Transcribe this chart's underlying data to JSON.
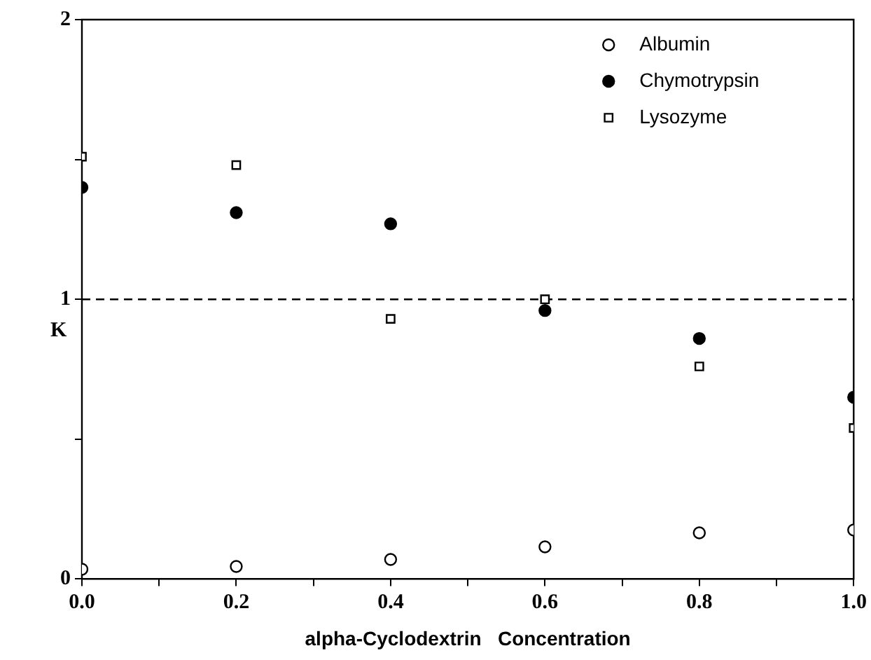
{
  "chart_data": {
    "type": "scatter",
    "xlabel": "alpha-Cyclodextrin   Concentration",
    "ylabel": "K",
    "x": [
      0,
      0.2,
      0.4,
      0.6,
      0.8,
      1.0
    ],
    "series": [
      {
        "name": "Albumin",
        "color": "#ffffff",
        "marker": "circle",
        "values": [
          0.035,
          0.045,
          0.07,
          0.115,
          0.165,
          0.175
        ]
      },
      {
        "name": "Chymotrypsin",
        "color": "#000000",
        "marker": "circle",
        "values": [
          1.4,
          1.31,
          1.27,
          0.96,
          0.86,
          0.65
        ]
      },
      {
        "name": "Lysozyme",
        "color": "#ffffff",
        "marker": "square",
        "values": [
          1.51,
          1.48,
          0.93,
          1.0,
          0.76,
          0.54
        ]
      }
    ],
    "xlim": [
      0,
      1
    ],
    "ylim": [
      0,
      2
    ],
    "xticks": [
      {
        "value": 0,
        "label": "0.0"
      },
      {
        "value": 0.1,
        "label": null
      },
      {
        "value": 0.2,
        "label": "0.2"
      },
      {
        "value": 0.3,
        "label": null
      },
      {
        "value": 0.4,
        "label": "0.4"
      },
      {
        "value": 0.5,
        "label": null
      },
      {
        "value": 0.6,
        "label": "0.6"
      },
      {
        "value": 0.7,
        "label": null
      },
      {
        "value": 0.8,
        "label": "0.8"
      },
      {
        "value": 0.9,
        "label": null
      },
      {
        "value": 1,
        "label": "1.0"
      }
    ],
    "yticks": [
      0,
      {
        "value": 0.5,
        "label": null
      },
      1,
      {
        "value": 1.5,
        "label": null
      },
      2
    ],
    "ref_lines": [
      {
        "axis": "y",
        "value": 1,
        "line_style": "dashed",
        "color": "#000000"
      }
    ],
    "legend": "top right",
    "grid": false
  }
}
